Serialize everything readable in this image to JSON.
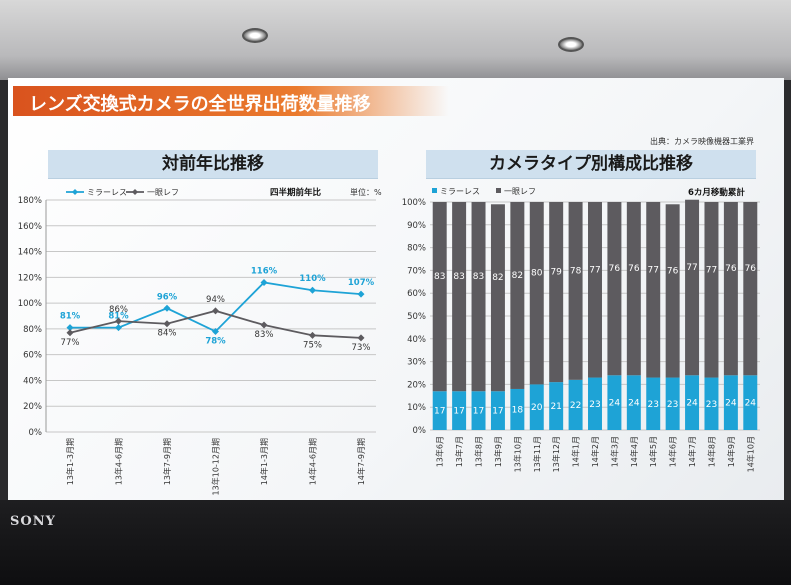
{
  "slide": {
    "title": "レンズ交換式カメラの全世界出荷数量推移",
    "source": "出典：カメラ映像機器工業界",
    "brand": "SONY"
  },
  "colors": {
    "mirrorless": "#1ea3d6",
    "slr": "#5d5b5f",
    "title_bar": "#e06a25",
    "panel_header": "#cfe0ee"
  },
  "chart_data": [
    {
      "type": "line",
      "title": "対前年比推移",
      "subtitle": "四半期前年比",
      "unit_note": "単位：%",
      "categories": [
        "13年1-3月期",
        "13年4-6月期",
        "13年7-9月期",
        "13年10-12月期",
        "14年1-3月期",
        "14年4-6月期",
        "14年7-9月期"
      ],
      "series": [
        {
          "name": "ミラーレス",
          "values": [
            81,
            81,
            96,
            78,
            116,
            110,
            107
          ],
          "labels": [
            "81%",
            "81%",
            "96%",
            "78%",
            "116%",
            "110%",
            "107%"
          ]
        },
        {
          "name": "一眼レフ",
          "values": [
            77,
            86,
            84,
            94,
            83,
            75,
            73
          ],
          "labels": [
            "77%",
            "86%",
            "84%",
            "94%",
            "83%",
            "75%",
            "73%"
          ]
        }
      ],
      "yticks": [
        "0%",
        "20%",
        "40%",
        "60%",
        "80%",
        "100%",
        "120%",
        "140%",
        "160%",
        "180%"
      ],
      "ylim": [
        0,
        180
      ],
      "grid": true,
      "legend": "top-left"
    },
    {
      "type": "bar",
      "stacked": true,
      "title": "カメラタイプ別構成比推移",
      "subtitle": "6カ月移動累計",
      "categories": [
        "13年6月",
        "13年7月",
        "13年8月",
        "13年9月",
        "13年10月",
        "13年11月",
        "13年12月",
        "14年1月",
        "14年2月",
        "14年3月",
        "14年4月",
        "14年5月",
        "14年6月",
        "14年7月",
        "14年8月",
        "14年9月",
        "14年10月"
      ],
      "series": [
        {
          "name": "ミラーレス",
          "values": [
            17,
            17,
            17,
            17,
            18,
            20,
            21,
            22,
            23,
            24,
            24,
            23,
            23,
            24,
            23,
            24,
            24
          ]
        },
        {
          "name": "一眼レフ",
          "values": [
            83,
            83,
            83,
            82,
            82,
            80,
            79,
            78,
            77,
            76,
            76,
            77,
            76,
            77,
            77,
            76,
            76
          ]
        }
      ],
      "yticks": [
        "0%",
        "10%",
        "20%",
        "30%",
        "40%",
        "50%",
        "60%",
        "70%",
        "80%",
        "90%",
        "100%"
      ],
      "ylim": [
        0,
        100
      ],
      "grid": true,
      "legend": "top-left"
    }
  ]
}
